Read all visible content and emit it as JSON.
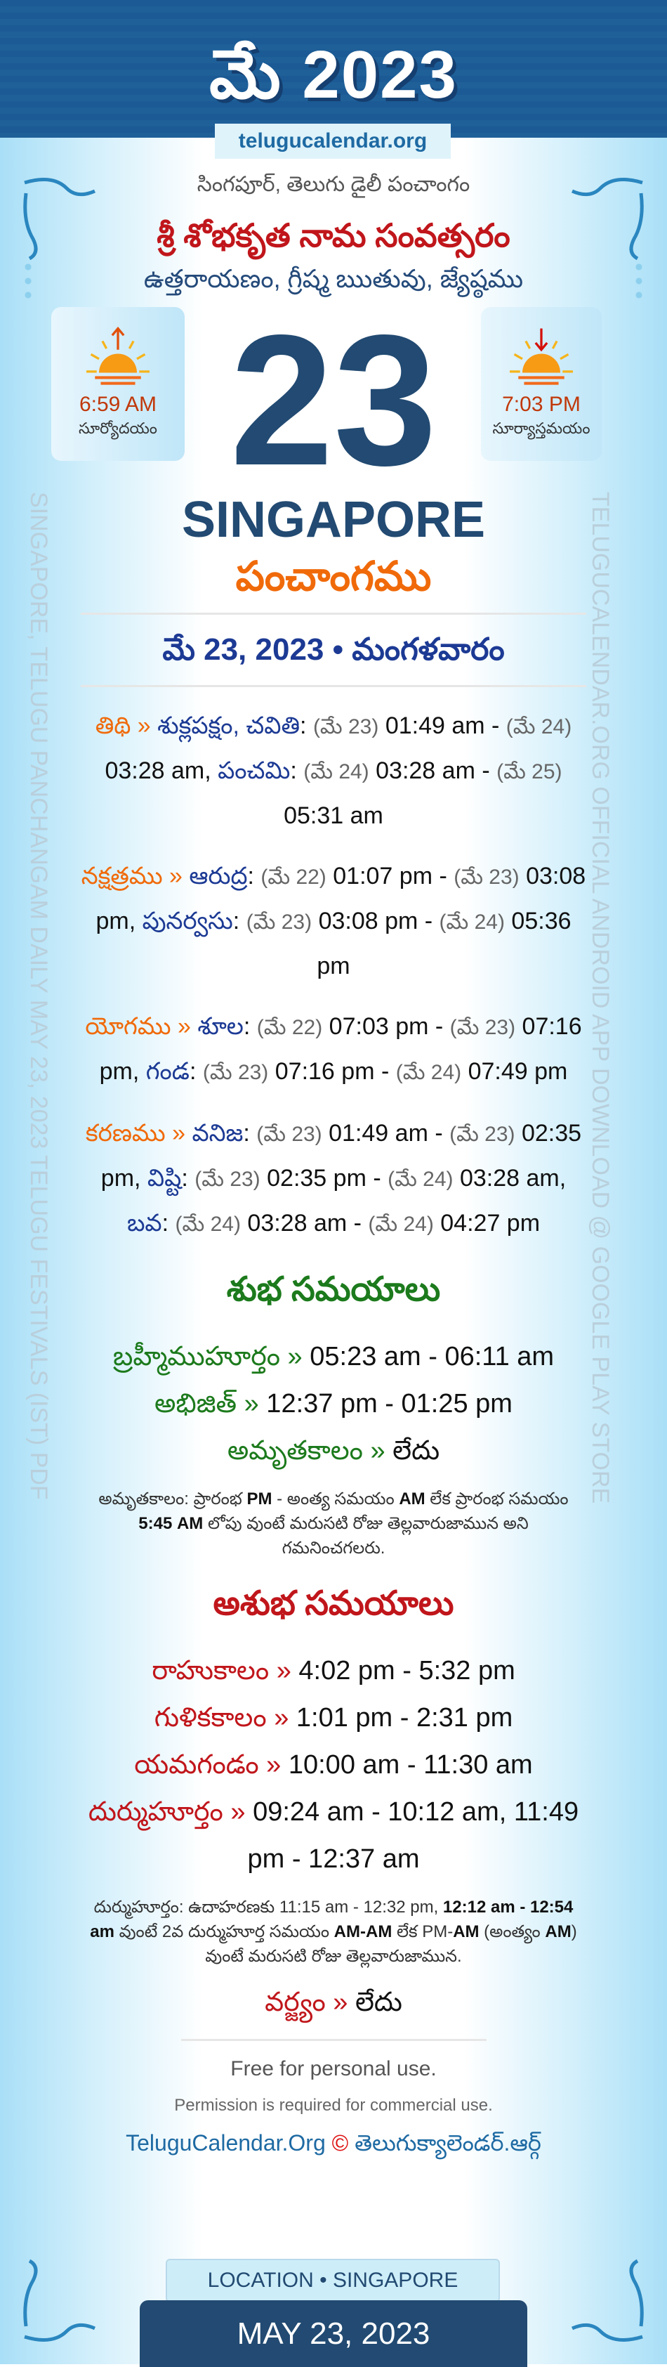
{
  "header": {
    "month_title": "మే 2023",
    "site": "telugucalendar.org"
  },
  "subtitle": "సింగపూర్, తెలుగు డైలీ పంచాంగం",
  "year_name": "శ్రీ శోభకృత నామ సంవత్సరం",
  "ayana": "ఉత్తరాయణం, గ్రీష్మ ఋతువు, జ్యేష్ఠము",
  "sunrise": {
    "time": "6:59 AM",
    "label": "సూర్యోదయం",
    "icon": "sunrise-icon"
  },
  "sunset": {
    "time": "7:03 PM",
    "label": "సూర్యాస్తమయం",
    "icon": "sunset-icon"
  },
  "day": "23",
  "city": "SINGAPORE",
  "panchangam": "పంచాంగము",
  "date_line": "మే 23, 2023 • మంగళవారం",
  "side_left": "SINGAPORE, TELUGU PANCHANGAM DAILY MAY 23, 2023 TELUGU FESTIVALS (IST) PDF",
  "side_right": "TELUGUCALENDAR.ORG OFFICIAL ANDROID APP DOWNLOAD @ GOOGLE PLAY STORE",
  "watermark": "telugucalendar.org",
  "colors": {
    "header": "#1a5d97",
    "accent_orange": "#f06a0a",
    "title_red": "#c0161b",
    "navy": "#224a72",
    "green": "#1c7a1c"
  },
  "panchang": [
    {
      "id": "tithi",
      "segments": [
        [
          "label",
          "తిథి »"
        ],
        [
          "name",
          " శుక్లపక్షం, చవితి"
        ],
        [
          "t",
          ": "
        ],
        [
          "date",
          "(మే 23)"
        ],
        [
          "t",
          " 01:49 am - "
        ],
        [
          "date",
          "(మే 24)"
        ],
        [
          "t",
          " 03:28 am, "
        ],
        [
          "name",
          "పంచమి"
        ],
        [
          "t",
          ": "
        ],
        [
          "date",
          "(మే 24)"
        ],
        [
          "t",
          " 03:28 am - "
        ],
        [
          "date",
          "(మే 25)"
        ],
        [
          "t",
          " 05:31 am"
        ]
      ]
    },
    {
      "id": "nakshatra",
      "segments": [
        [
          "label",
          "నక్షత్రము »"
        ],
        [
          "name",
          " ఆరుద్ర"
        ],
        [
          "t",
          ": "
        ],
        [
          "date",
          "(మే 22)"
        ],
        [
          "t",
          " 01:07 pm - "
        ],
        [
          "date",
          "(మే 23)"
        ],
        [
          "t",
          " 03:08 pm, "
        ],
        [
          "name",
          "పునర్వసు"
        ],
        [
          "t",
          ": "
        ],
        [
          "date",
          "(మే 23)"
        ],
        [
          "t",
          " 03:08 pm - "
        ],
        [
          "date",
          "(మే 24)"
        ],
        [
          "t",
          " 05:36 pm"
        ]
      ]
    },
    {
      "id": "yogam",
      "segments": [
        [
          "label",
          "యోగము »"
        ],
        [
          "name",
          " శూల"
        ],
        [
          "t",
          ": "
        ],
        [
          "date",
          "(మే 22)"
        ],
        [
          "t",
          " 07:03 pm - "
        ],
        [
          "date",
          "(మే 23)"
        ],
        [
          "t",
          " 07:16 pm, "
        ],
        [
          "name",
          "గండ"
        ],
        [
          "t",
          ": "
        ],
        [
          "date",
          "(మే 23)"
        ],
        [
          "t",
          " 07:16 pm - "
        ],
        [
          "date",
          "(మే 24)"
        ],
        [
          "t",
          " 07:49 pm"
        ]
      ]
    },
    {
      "id": "karanam",
      "segments": [
        [
          "label",
          "కరణము »"
        ],
        [
          "name",
          " వనిజ"
        ],
        [
          "t",
          ": "
        ],
        [
          "date",
          "(మే 23)"
        ],
        [
          "t",
          " 01:49 am - "
        ],
        [
          "date",
          "(మే 23)"
        ],
        [
          "t",
          " 02:35 pm, "
        ],
        [
          "name",
          "విష్టి"
        ],
        [
          "t",
          ": "
        ],
        [
          "date",
          "(మే 23)"
        ],
        [
          "t",
          " 02:35 pm - "
        ],
        [
          "date",
          "(మే 24)"
        ],
        [
          "t",
          " 03:28 am, "
        ],
        [
          "name",
          "బవ"
        ],
        [
          "t",
          ": "
        ],
        [
          "date",
          "(మే 24)"
        ],
        [
          "t",
          " 03:28 am - "
        ],
        [
          "date",
          "(మే 24)"
        ],
        [
          "t",
          " 04:27 pm"
        ]
      ]
    }
  ],
  "shubha": {
    "heading": "శుభ సమయాలు",
    "rows": [
      {
        "label": "బ్రహ్మీముహూర్తం »",
        "value": " 05:23 am - 06:11 am"
      },
      {
        "label": "అభిజిత్ »",
        "value": " 12:37 pm - 01:25 pm"
      },
      {
        "label": "అమృతకాలం »",
        "value": " లేదు"
      }
    ],
    "note": [
      "అమృతకాలం: ప్రారంభ ",
      "PM",
      " - అంత్య సమయం ",
      "AM",
      " లేక ప్రారంభ సమయం ",
      "5:45 AM",
      " లోపు వుంటే మరుసటి రోజు తెల్లవారుజామున అని గమనించగలరు."
    ]
  },
  "ashubha": {
    "heading": "అశుభ సమయాలు",
    "rows": [
      {
        "label": "రాహుకాలం »",
        "value": " 4:02 pm - 5:32 pm"
      },
      {
        "label": "గుళికకాలం »",
        "value": " 1:01 pm - 2:31 pm"
      },
      {
        "label": "యమగండం »",
        "value": " 10:00 am - 11:30 am"
      },
      {
        "label": "దుర్ముహూర్తం »",
        "value": " 09:24 am - 10:12 am, 11:49 pm - 12:37 am"
      }
    ],
    "note": [
      "దుర్ముహూర్తం: ఉదాహరణకు 11:15 am - 12:32 pm, ",
      "12:12 am - 12:54 am",
      " వుంటే 2వ దుర్ముహూర్త సమయం ",
      "AM-AM",
      " లేక PM-",
      "AM",
      " (అంత్యం ",
      "AM",
      ") వుంటే మరుసటి రోజు తెల్లవారుజామున."
    ],
    "varjyam": {
      "label": "వర్జ్యం »",
      "value": " లేదు"
    }
  },
  "footer": {
    "free": "Free for personal use.",
    "permission": "Permission is required for commercial use.",
    "brand_en": "TeluguCalendar.Org",
    "copyright": "©",
    "brand_te": "తెలుగుక్యాలెండర్.ఆర్గ్",
    "location": "LOCATION • SINGAPORE",
    "date": "MAY 23, 2023"
  }
}
